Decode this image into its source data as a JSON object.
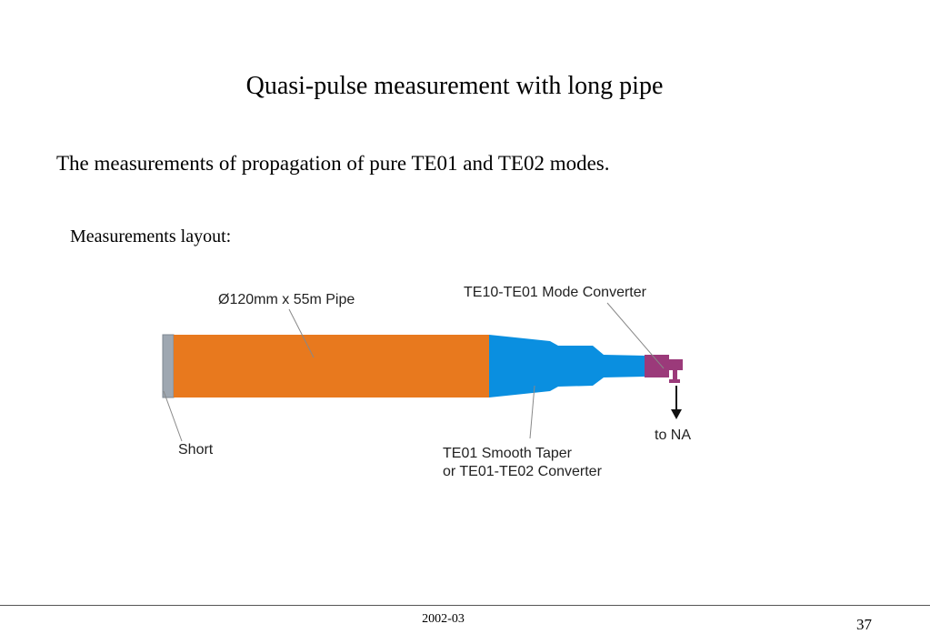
{
  "slide": {
    "title": "Quasi-pulse measurement with long pipe",
    "intro": "The measurements of propagation of pure TE01 and TE02 modes.",
    "subheading": "Measurements layout:"
  },
  "diagram": {
    "labels": {
      "pipe": "Ø120mm x 55m Pipe",
      "mode_converter": "TE10-TE01 Mode Converter",
      "short": "Short",
      "taper_line1": "TE01 Smooth Taper",
      "taper_line2": "or TE01-TE02 Converter",
      "to_na": "to NA"
    },
    "colors": {
      "pipe": "#E8791E",
      "short": "#9EA7B1",
      "taper": "#0A8FE0",
      "mode_converter": "#9B3A7A",
      "leader_line": "#888888"
    }
  },
  "footer": {
    "date": "2002-03",
    "page_number": "37"
  }
}
